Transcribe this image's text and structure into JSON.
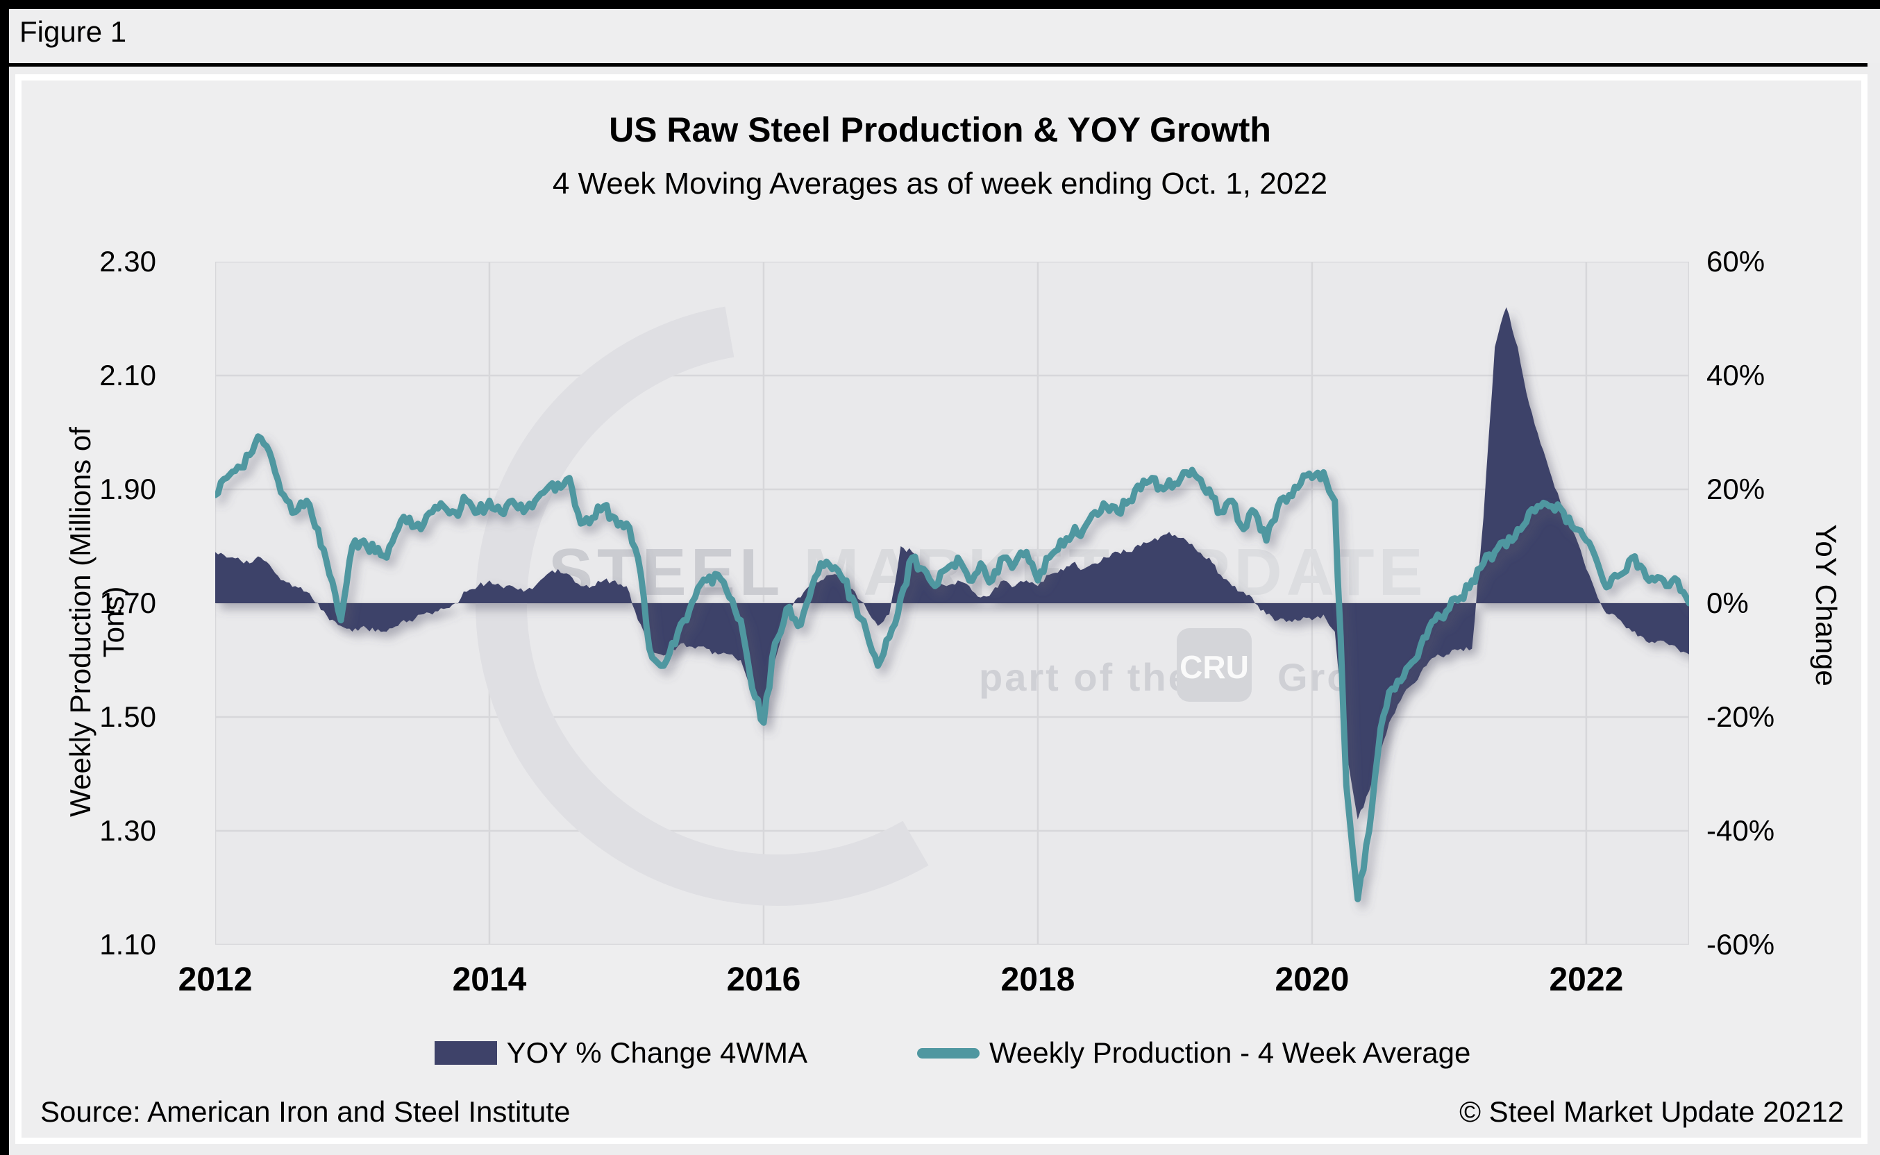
{
  "header": {
    "figure_label": "Figure 1"
  },
  "chart": {
    "title": "US Raw Steel Production & YOY Growth",
    "subtitle": "4 Week Moving Averages as of week ending Oct. 1, 2022",
    "left_axis": {
      "label": "Weekly Production (Millions of Tons)",
      "ticks": [
        "2.30",
        "2.10",
        "1.90",
        "1.70",
        "1.50",
        "1.30",
        "1.10"
      ]
    },
    "right_axis": {
      "label": "YoY Change",
      "ticks": [
        "60%",
        "40%",
        "20%",
        "0%",
        "-20%",
        "-40%",
        "-60%"
      ]
    },
    "x_axis": {
      "ticks": [
        "2012",
        "2014",
        "2016",
        "2018",
        "2020",
        "2022"
      ]
    },
    "legend": [
      {
        "label": "YOY % Change 4WMA",
        "type": "area",
        "color": "#3e4269"
      },
      {
        "label": "Weekly Production - 4 Week Average",
        "type": "line",
        "color": "#4f97a0"
      }
    ],
    "watermark": {
      "word1": "STEEL",
      "word2": "MARKET",
      "word3": "UPDATE",
      "tagline_prefix": "part of the",
      "badge": "CRU",
      "tagline_suffix": "Group"
    }
  },
  "footer": {
    "source": "Source: American Iron and Steel Institute",
    "copyright": "© Steel Market Update 20212"
  },
  "colors": {
    "production_line": "#4f97a0",
    "yoy_area": "#3e4269",
    "plot_background": "#e9e9eb",
    "gridline": "#d7d7da",
    "watermark_dark": "#cbccd1",
    "watermark_light": "#d9dadd",
    "shadow": "#5a5a6e"
  },
  "chart_data": {
    "type": "combo",
    "title": "US Raw Steel Production & YOY Growth",
    "subtitle": "4 Week Moving Averages as of week ending Oct. 1, 2022",
    "x_start_year": 2012.0,
    "x_end_year": 2022.75,
    "x_step_months": 1,
    "x_tick_years": [
      2012,
      2014,
      2016,
      2018,
      2020,
      2022
    ],
    "left_axis_range": [
      1.1,
      2.3
    ],
    "right_axis_range": [
      -60,
      60
    ],
    "grid": true,
    "legend_position": "bottom",
    "series": [
      {
        "name": "YOY % Change 4WMA",
        "type": "area",
        "axis": "right",
        "unit": "percent",
        "baseline": 0,
        "values": [
          9,
          8,
          8,
          7,
          8,
          6,
          4,
          3,
          2,
          0,
          -3,
          -4,
          -5,
          -4,
          -5,
          -5,
          -4,
          -3,
          -2,
          -2,
          -1,
          0,
          2,
          3,
          4,
          3,
          3,
          2,
          3,
          5,
          6,
          5,
          3,
          3,
          4,
          4,
          3,
          -3,
          -8,
          -9,
          -8,
          -7,
          -8,
          -8,
          -9,
          -9,
          -10,
          -16,
          -19,
          -10,
          -2,
          1,
          3,
          4,
          5,
          4,
          2,
          -1,
          -4,
          -2,
          10,
          9,
          6,
          3,
          3,
          4,
          3,
          1,
          2,
          4,
          3,
          4,
          3,
          5,
          6,
          7,
          6,
          7,
          8,
          9,
          9,
          10,
          11,
          12,
          12,
          11,
          9,
          8,
          5,
          3,
          2,
          0,
          -2,
          -3,
          -3,
          -3,
          -3,
          -2,
          -5,
          -26,
          -38,
          -33,
          -26,
          -20,
          -16,
          -14,
          -11,
          -9,
          -9,
          -8,
          -8,
          15,
          45,
          52,
          45,
          35,
          28,
          22,
          16,
          12,
          6,
          1,
          -2,
          -3,
          -5,
          -6,
          -7,
          -7,
          -8,
          -9
        ]
      },
      {
        "name": "Weekly Production - 4 Week Average",
        "type": "line",
        "axis": "left",
        "unit": "millions_of_tons",
        "values": [
          1.89,
          1.92,
          1.94,
          1.96,
          1.99,
          1.95,
          1.89,
          1.86,
          1.88,
          1.83,
          1.75,
          1.67,
          1.8,
          1.81,
          1.79,
          1.78,
          1.83,
          1.85,
          1.83,
          1.86,
          1.87,
          1.86,
          1.88,
          1.86,
          1.88,
          1.86,
          1.88,
          1.86,
          1.88,
          1.9,
          1.91,
          1.92,
          1.84,
          1.85,
          1.87,
          1.85,
          1.84,
          1.78,
          1.62,
          1.59,
          1.63,
          1.67,
          1.71,
          1.74,
          1.75,
          1.71,
          1.67,
          1.55,
          1.49,
          1.63,
          1.69,
          1.66,
          1.71,
          1.77,
          1.76,
          1.74,
          1.7,
          1.65,
          1.59,
          1.64,
          1.71,
          1.78,
          1.76,
          1.73,
          1.76,
          1.78,
          1.74,
          1.77,
          1.74,
          1.78,
          1.77,
          1.79,
          1.74,
          1.78,
          1.81,
          1.82,
          1.83,
          1.86,
          1.87,
          1.86,
          1.88,
          1.9,
          1.92,
          1.9,
          1.91,
          1.93,
          1.92,
          1.9,
          1.86,
          1.88,
          1.83,
          1.86,
          1.81,
          1.87,
          1.89,
          1.91,
          1.92,
          1.93,
          1.88,
          1.38,
          1.18,
          1.3,
          1.48,
          1.55,
          1.57,
          1.6,
          1.64,
          1.68,
          1.69,
          1.71,
          1.74,
          1.77,
          1.79,
          1.8,
          1.83,
          1.86,
          1.87,
          1.87,
          1.86,
          1.83,
          1.81,
          1.77,
          1.73,
          1.75,
          1.78,
          1.76,
          1.74,
          1.73,
          1.74,
          1.7
        ]
      }
    ]
  }
}
